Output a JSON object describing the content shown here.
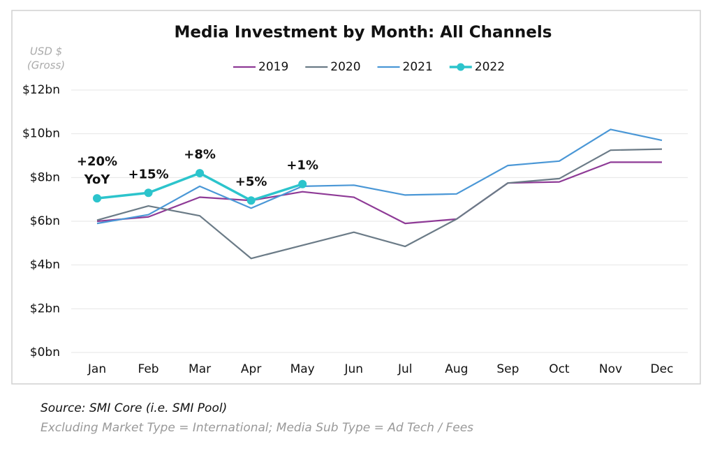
{
  "chart_data": {
    "type": "line",
    "title": "Media Investment by Month: All Channels",
    "y_label": [
      "USD $",
      "(Gross)"
    ],
    "categories": [
      "Jan",
      "Feb",
      "Mar",
      "Apr",
      "May",
      "Jun",
      "Jul",
      "Aug",
      "Sep",
      "Oct",
      "Nov",
      "Dec"
    ],
    "series": [
      {
        "name": "2019",
        "color": "#8e3a96",
        "values": [
          6.0,
          6.2,
          7.1,
          6.95,
          7.35,
          7.1,
          5.9,
          6.1,
          7.75,
          7.8,
          8.7,
          8.7
        ]
      },
      {
        "name": "2020",
        "color": "#6b7b87",
        "values": [
          6.05,
          6.7,
          6.25,
          4.3,
          4.9,
          5.5,
          4.85,
          6.1,
          7.75,
          7.95,
          9.25,
          9.3
        ]
      },
      {
        "name": "2021",
        "color": "#4a97d6",
        "values": [
          5.9,
          6.3,
          7.6,
          6.6,
          7.6,
          7.65,
          7.2,
          7.25,
          8.55,
          8.75,
          10.2,
          9.7
        ]
      },
      {
        "name": "2022",
        "color": "#2cc4cc",
        "markers": true,
        "values": [
          7.05,
          7.3,
          8.2,
          6.95,
          7.7,
          null,
          null,
          null,
          null,
          null,
          null,
          null
        ]
      }
    ],
    "annotations": [
      {
        "lines": [
          "+20%",
          "YoY"
        ]
      },
      {
        "lines": [
          "+15%"
        ]
      },
      {
        "lines": [
          "+8%"
        ]
      },
      {
        "lines": [
          "+5%"
        ]
      },
      {
        "lines": [
          "+1%"
        ]
      }
    ],
    "ylim": [
      0,
      12
    ],
    "yticks": [
      {
        "value": 0,
        "label": "$0bn"
      },
      {
        "value": 2,
        "label": "$2bn"
      },
      {
        "value": 4,
        "label": "$4bn"
      },
      {
        "value": 6,
        "label": "$6bn"
      },
      {
        "value": 8,
        "label": "$8bn"
      },
      {
        "value": 10,
        "label": "$10bn"
      },
      {
        "value": 12,
        "label": "$12bn"
      }
    ],
    "grid": true,
    "legend": "top",
    "notes": [
      "Source: SMI Core (i.e. SMI Pool)",
      "Excluding Market Type = International; Media Sub Type = Ad Tech / Fees"
    ]
  }
}
